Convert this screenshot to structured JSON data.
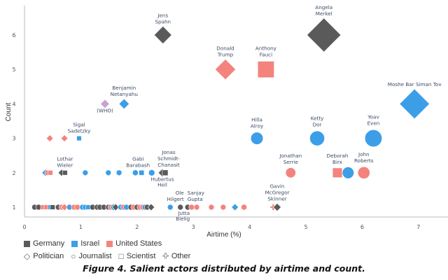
{
  "chart_data": {
    "type": "scatter",
    "caption": "Figure 4. Salient actors distributed by airtime and count.",
    "xlabel": "Airtime (%)",
    "ylabel": "Count",
    "xlim": [
      0,
      7.5
    ],
    "ylim": [
      0.7,
      6.4
    ],
    "xticks": [
      "0",
      "1",
      "2",
      "3",
      "4",
      "5",
      "6",
      "7"
    ],
    "yticks": [
      "1",
      "2",
      "3",
      "4",
      "5",
      "6"
    ],
    "grid": false,
    "legend_position": "bottom-left",
    "countries": [
      {
        "name": "Germany",
        "color": "#5a5a5a"
      },
      {
        "name": "Israel",
        "color": "#3d9ee8"
      },
      {
        "name": "United States",
        "color": "#f4837d"
      }
    ],
    "roles": [
      {
        "name": "Politician",
        "shape": "diamond"
      },
      {
        "name": "Journalist",
        "shape": "circle"
      },
      {
        "name": "Scientist",
        "shape": "square"
      },
      {
        "name": "Other",
        "shape": "plus"
      }
    ],
    "other_color": "#c8a2d4",
    "points": [
      {
        "label": "Angela Merkel",
        "x": 5.32,
        "y": 6,
        "country": "Germany",
        "role": "Politician"
      },
      {
        "label": "Jens Spahn",
        "x": 2.46,
        "y": 6,
        "country": "Germany",
        "role": "Politician"
      },
      {
        "label": "Donald Trump",
        "x": 3.57,
        "y": 5,
        "country": "United States",
        "role": "Politician"
      },
      {
        "label": "Anthony Fauci",
        "x": 4.29,
        "y": 5,
        "country": "United States",
        "role": "Scientist"
      },
      {
        "label": "Moshe Bar Siman Tov",
        "x": 6.93,
        "y": 4,
        "country": "Israel",
        "role": "Politician"
      },
      {
        "label": "Benjamin Netanyahu",
        "x": 1.77,
        "y": 4,
        "country": "Israel",
        "role": "Politician"
      },
      {
        "label": "(WHO)",
        "x": 1.43,
        "y": 4,
        "country": null,
        "role": "Politician",
        "below": true
      },
      {
        "label": "Sigal Sadetzky",
        "x": 0.97,
        "y": 3,
        "country": "Israel",
        "role": "Scientist"
      },
      {
        "x": 0.45,
        "y": 3,
        "country": "United States",
        "role": "Politician"
      },
      {
        "x": 0.71,
        "y": 3,
        "country": "United States",
        "role": "Politician"
      },
      {
        "label": "Hilla Alroy",
        "x": 4.13,
        "y": 3,
        "country": "Israel",
        "role": "Journalist"
      },
      {
        "label": "Ketty Dor",
        "x": 5.2,
        "y": 3,
        "country": "Israel",
        "role": "Journalist"
      },
      {
        "label": "Yoav Even",
        "x": 6.2,
        "y": 3,
        "country": "Israel",
        "role": "Journalist"
      },
      {
        "x": 0.37,
        "y": 2,
        "country": "Israel",
        "role": "Politician"
      },
      {
        "x": 0.41,
        "y": 2,
        "country": "United States",
        "role": "Journalist"
      },
      {
        "x": 0.46,
        "y": 2,
        "country": "United States",
        "role": "Scientist"
      },
      {
        "x": 0.66,
        "y": 2,
        "country": "Germany",
        "role": "Politician"
      },
      {
        "label": "Lothar Wieler",
        "x": 0.72,
        "y": 2,
        "country": "Germany",
        "role": "Scientist"
      },
      {
        "x": 1.08,
        "y": 2,
        "country": "Israel",
        "role": "Journalist"
      },
      {
        "x": 1.49,
        "y": 2,
        "country": "Israel",
        "role": "Journalist"
      },
      {
        "x": 1.68,
        "y": 2,
        "country": "Israel",
        "role": "Journalist"
      },
      {
        "x": 1.97,
        "y": 2,
        "country": "Israel",
        "role": "Journalist"
      },
      {
        "label": "Gabi Barabash",
        "x": 2.08,
        "y": 2,
        "country": "Israel",
        "role": "Scientist"
      },
      {
        "x": 2.26,
        "y": 2,
        "country": "Israel",
        "role": "Journalist"
      },
      {
        "label": "Hubertus Heil",
        "x": 2.45,
        "y": 2,
        "country": "Germany",
        "role": "Politician",
        "below": true
      },
      {
        "label": "Jonas Schmidt-Chanasit",
        "x": 2.5,
        "y": 2,
        "country": "Germany",
        "role": "Scientist"
      },
      {
        "label": "Jonathan Serrie",
        "x": 4.73,
        "y": 2,
        "country": "United States",
        "role": "Journalist"
      },
      {
        "label": "Deborah Birx",
        "x": 5.56,
        "y": 2,
        "country": "United States",
        "role": "Scientist"
      },
      {
        "x": 5.75,
        "y": 2,
        "country": "Israel",
        "role": "Journalist"
      },
      {
        "label": "John Roberts",
        "x": 6.03,
        "y": 2,
        "country": "United States",
        "role": "Journalist"
      },
      {
        "x": 0.18,
        "y": 1,
        "country": "Germany",
        "role": "Journalist"
      },
      {
        "x": 0.25,
        "y": 1,
        "country": "Germany",
        "role": "Journalist"
      },
      {
        "x": 0.33,
        "y": 1,
        "country": "United States",
        "role": "Scientist"
      },
      {
        "x": 0.39,
        "y": 1,
        "country": "United States",
        "role": "Scientist"
      },
      {
        "x": 0.46,
        "y": 1,
        "country": "Israel",
        "role": "Scientist"
      },
      {
        "x": 0.5,
        "y": 1,
        "country": "Germany",
        "role": "Scientist"
      },
      {
        "x": 0.6,
        "y": 1,
        "country": "Germany",
        "role": "Journalist"
      },
      {
        "x": 0.66,
        "y": 1,
        "country": "United States",
        "role": "Journalist"
      },
      {
        "x": 0.71,
        "y": 1,
        "country": "United States",
        "role": "Politician"
      },
      {
        "x": 0.8,
        "y": 1,
        "country": "Israel",
        "role": "Journalist"
      },
      {
        "x": 0.88,
        "y": 1,
        "country": "United States",
        "role": "Journalist"
      },
      {
        "x": 0.94,
        "y": 1,
        "country": "United States",
        "role": "Journalist"
      },
      {
        "x": 1.03,
        "y": 1,
        "country": "Israel",
        "role": "Journalist"
      },
      {
        "x": 1.08,
        "y": 1,
        "country": "Israel",
        "role": "Journalist"
      },
      {
        "x": 1.13,
        "y": 1,
        "country": "Israel",
        "role": "Scientist"
      },
      {
        "x": 1.21,
        "y": 1,
        "country": "Germany",
        "role": "Journalist"
      },
      {
        "x": 1.29,
        "y": 1,
        "country": "Germany",
        "role": "Journalist"
      },
      {
        "x": 1.34,
        "y": 1,
        "country": "Germany",
        "role": "Journalist"
      },
      {
        "x": 1.41,
        "y": 1,
        "country": "Germany",
        "role": "Journalist"
      },
      {
        "x": 1.49,
        "y": 1,
        "country": "Germany",
        "role": "Journalist"
      },
      {
        "x": 1.53,
        "y": 1,
        "country": "United States",
        "role": "Journalist"
      },
      {
        "x": 1.58,
        "y": 1,
        "country": "Israel",
        "role": "Politician"
      },
      {
        "x": 1.62,
        "y": 1,
        "country": "Germany",
        "role": "Politician"
      },
      {
        "x": 1.71,
        "y": 1,
        "country": "Israel",
        "role": "Journalist"
      },
      {
        "x": 1.76,
        "y": 1,
        "country": "United States",
        "role": "Journalist"
      },
      {
        "x": 1.81,
        "y": 1,
        "country": "Israel",
        "role": "Journalist"
      },
      {
        "x": 1.89,
        "y": 1,
        "country": "Germany",
        "role": "Journalist"
      },
      {
        "x": 1.94,
        "y": 1,
        "country": "United States",
        "role": "Journalist"
      },
      {
        "x": 2.0,
        "y": 1,
        "country": "Germany",
        "role": "Journalist"
      },
      {
        "x": 2.05,
        "y": 1,
        "country": "United States",
        "role": "Journalist"
      },
      {
        "x": 2.1,
        "y": 1,
        "country": "United States",
        "role": "Journalist"
      },
      {
        "x": 2.14,
        "y": 1,
        "country": "Israel",
        "role": "Journalist"
      },
      {
        "x": 2.18,
        "y": 1,
        "country": "Germany",
        "role": "Journalist"
      },
      {
        "x": 2.25,
        "y": 1,
        "country": "Germany",
        "role": "Politician"
      },
      {
        "x": 2.59,
        "y": 1,
        "country": "Israel",
        "role": "Journalist"
      },
      {
        "label": "Ole Hilgert",
        "x": 2.77,
        "y": 1,
        "country": "Germany",
        "role": "Journalist"
      },
      {
        "label": "Jutta Bielig",
        "x": 2.9,
        "y": 1,
        "country": "Germany",
        "role": "Journalist",
        "below": true
      },
      {
        "label": "Sanjay Gupta",
        "x": 2.97,
        "y": 1,
        "country": "United States",
        "role": "Journalist"
      },
      {
        "x": 3.06,
        "y": 1,
        "country": "United States",
        "role": "Journalist"
      },
      {
        "x": 3.32,
        "y": 1,
        "country": "United States",
        "role": "Journalist"
      },
      {
        "x": 3.53,
        "y": 1,
        "country": "United States",
        "role": "Journalist"
      },
      {
        "x": 3.74,
        "y": 1,
        "country": "Israel",
        "role": "Politician"
      },
      {
        "x": 3.9,
        "y": 1,
        "country": "United States",
        "role": "Journalist"
      },
      {
        "x": 4.42,
        "y": 1,
        "country": "United States",
        "role": "Other"
      },
      {
        "label": "Gavin McGregor Skinner",
        "x": 4.49,
        "y": 1,
        "country": "Germany",
        "role": "Politician"
      }
    ]
  }
}
